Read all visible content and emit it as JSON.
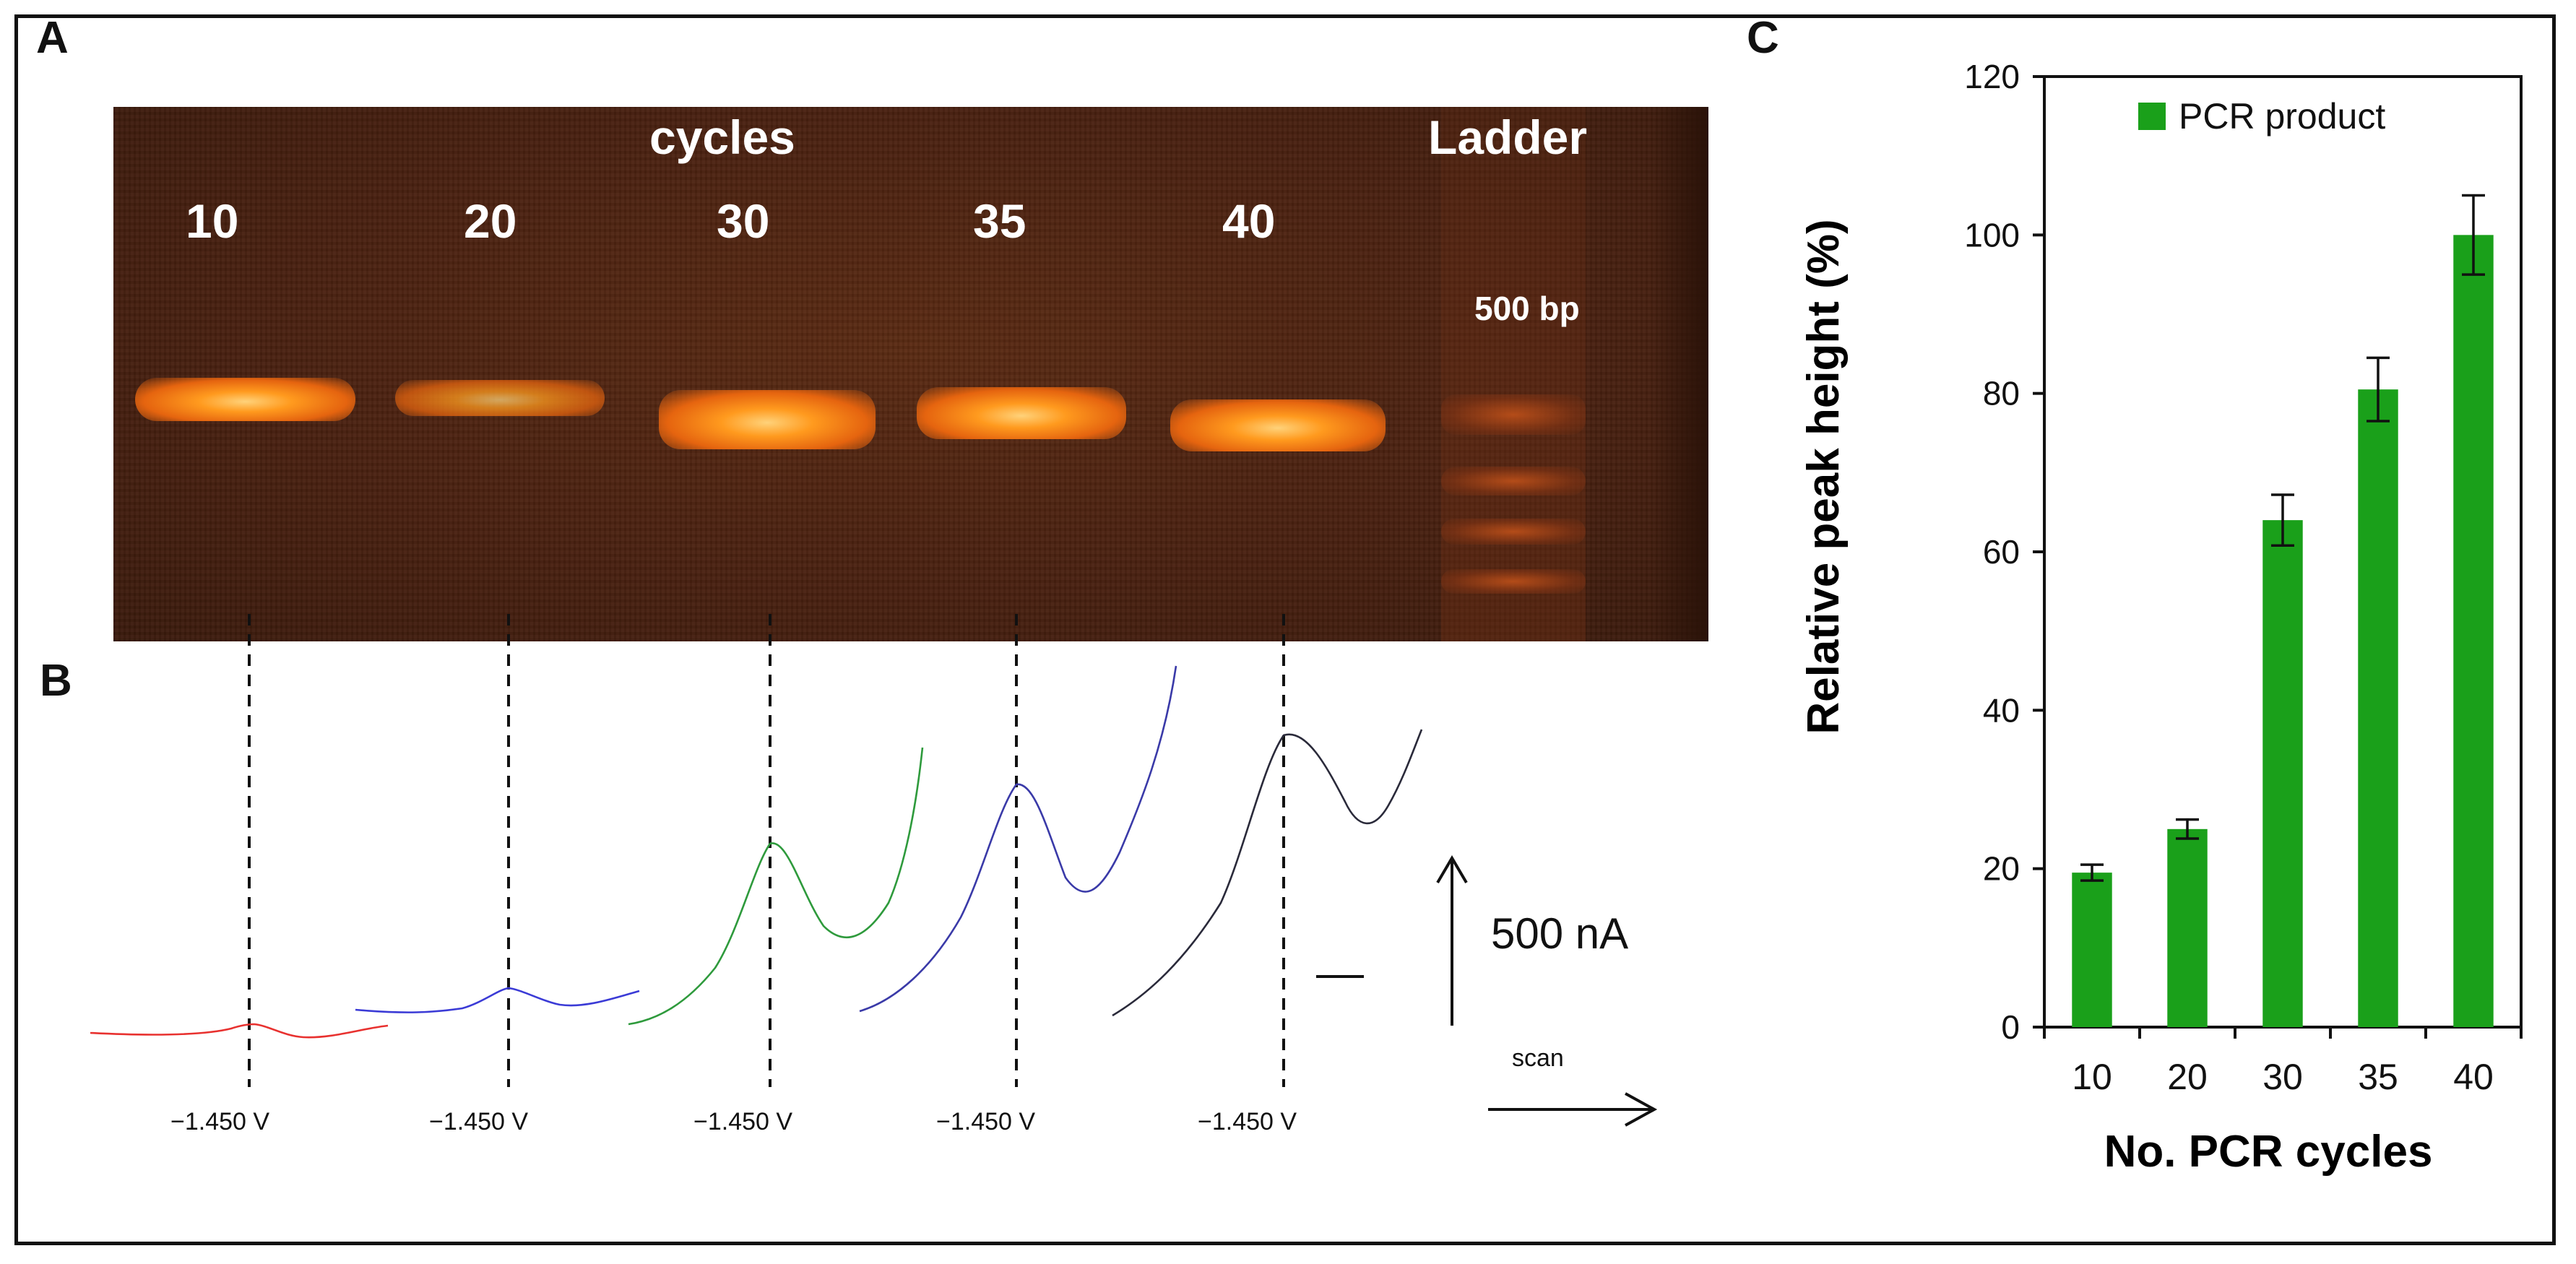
{
  "panels": {
    "a": "A",
    "b": "B",
    "c": "C"
  },
  "gel": {
    "cycles_label": "cycles",
    "ladder_label": "Ladder",
    "ladder_marker": "500 bp",
    "lanes": [
      "10",
      "20",
      "30",
      "35",
      "40"
    ]
  },
  "voltammetry": {
    "peak_potential_labels": [
      "−1.450 V",
      "−1.450 V",
      "−1.450 V",
      "−1.450 V",
      "−1.450 V"
    ],
    "scale_bar_label": "500 nA",
    "scan_label": "scan",
    "trace_colors": [
      "#e8312f",
      "#3b3bd6",
      "#2e9a3c",
      "#3a3aa8",
      "#2a2a3a"
    ]
  },
  "chart_data": {
    "type": "bar",
    "categories": [
      "10",
      "20",
      "30",
      "35",
      "40"
    ],
    "series": [
      {
        "name": "PCR product",
        "values": [
          19.5,
          25,
          64,
          80.5,
          100
        ],
        "errors": [
          1,
          1.2,
          3.2,
          4,
          5
        ],
        "color": "#1aa01a"
      }
    ],
    "xlabel": "No. PCR cycles",
    "ylabel": "Relative peak height (%)",
    "ylim": [
      0,
      120
    ],
    "yticks": [
      0,
      20,
      40,
      60,
      80,
      100,
      120
    ],
    "grid": false,
    "legend": "top-center"
  }
}
